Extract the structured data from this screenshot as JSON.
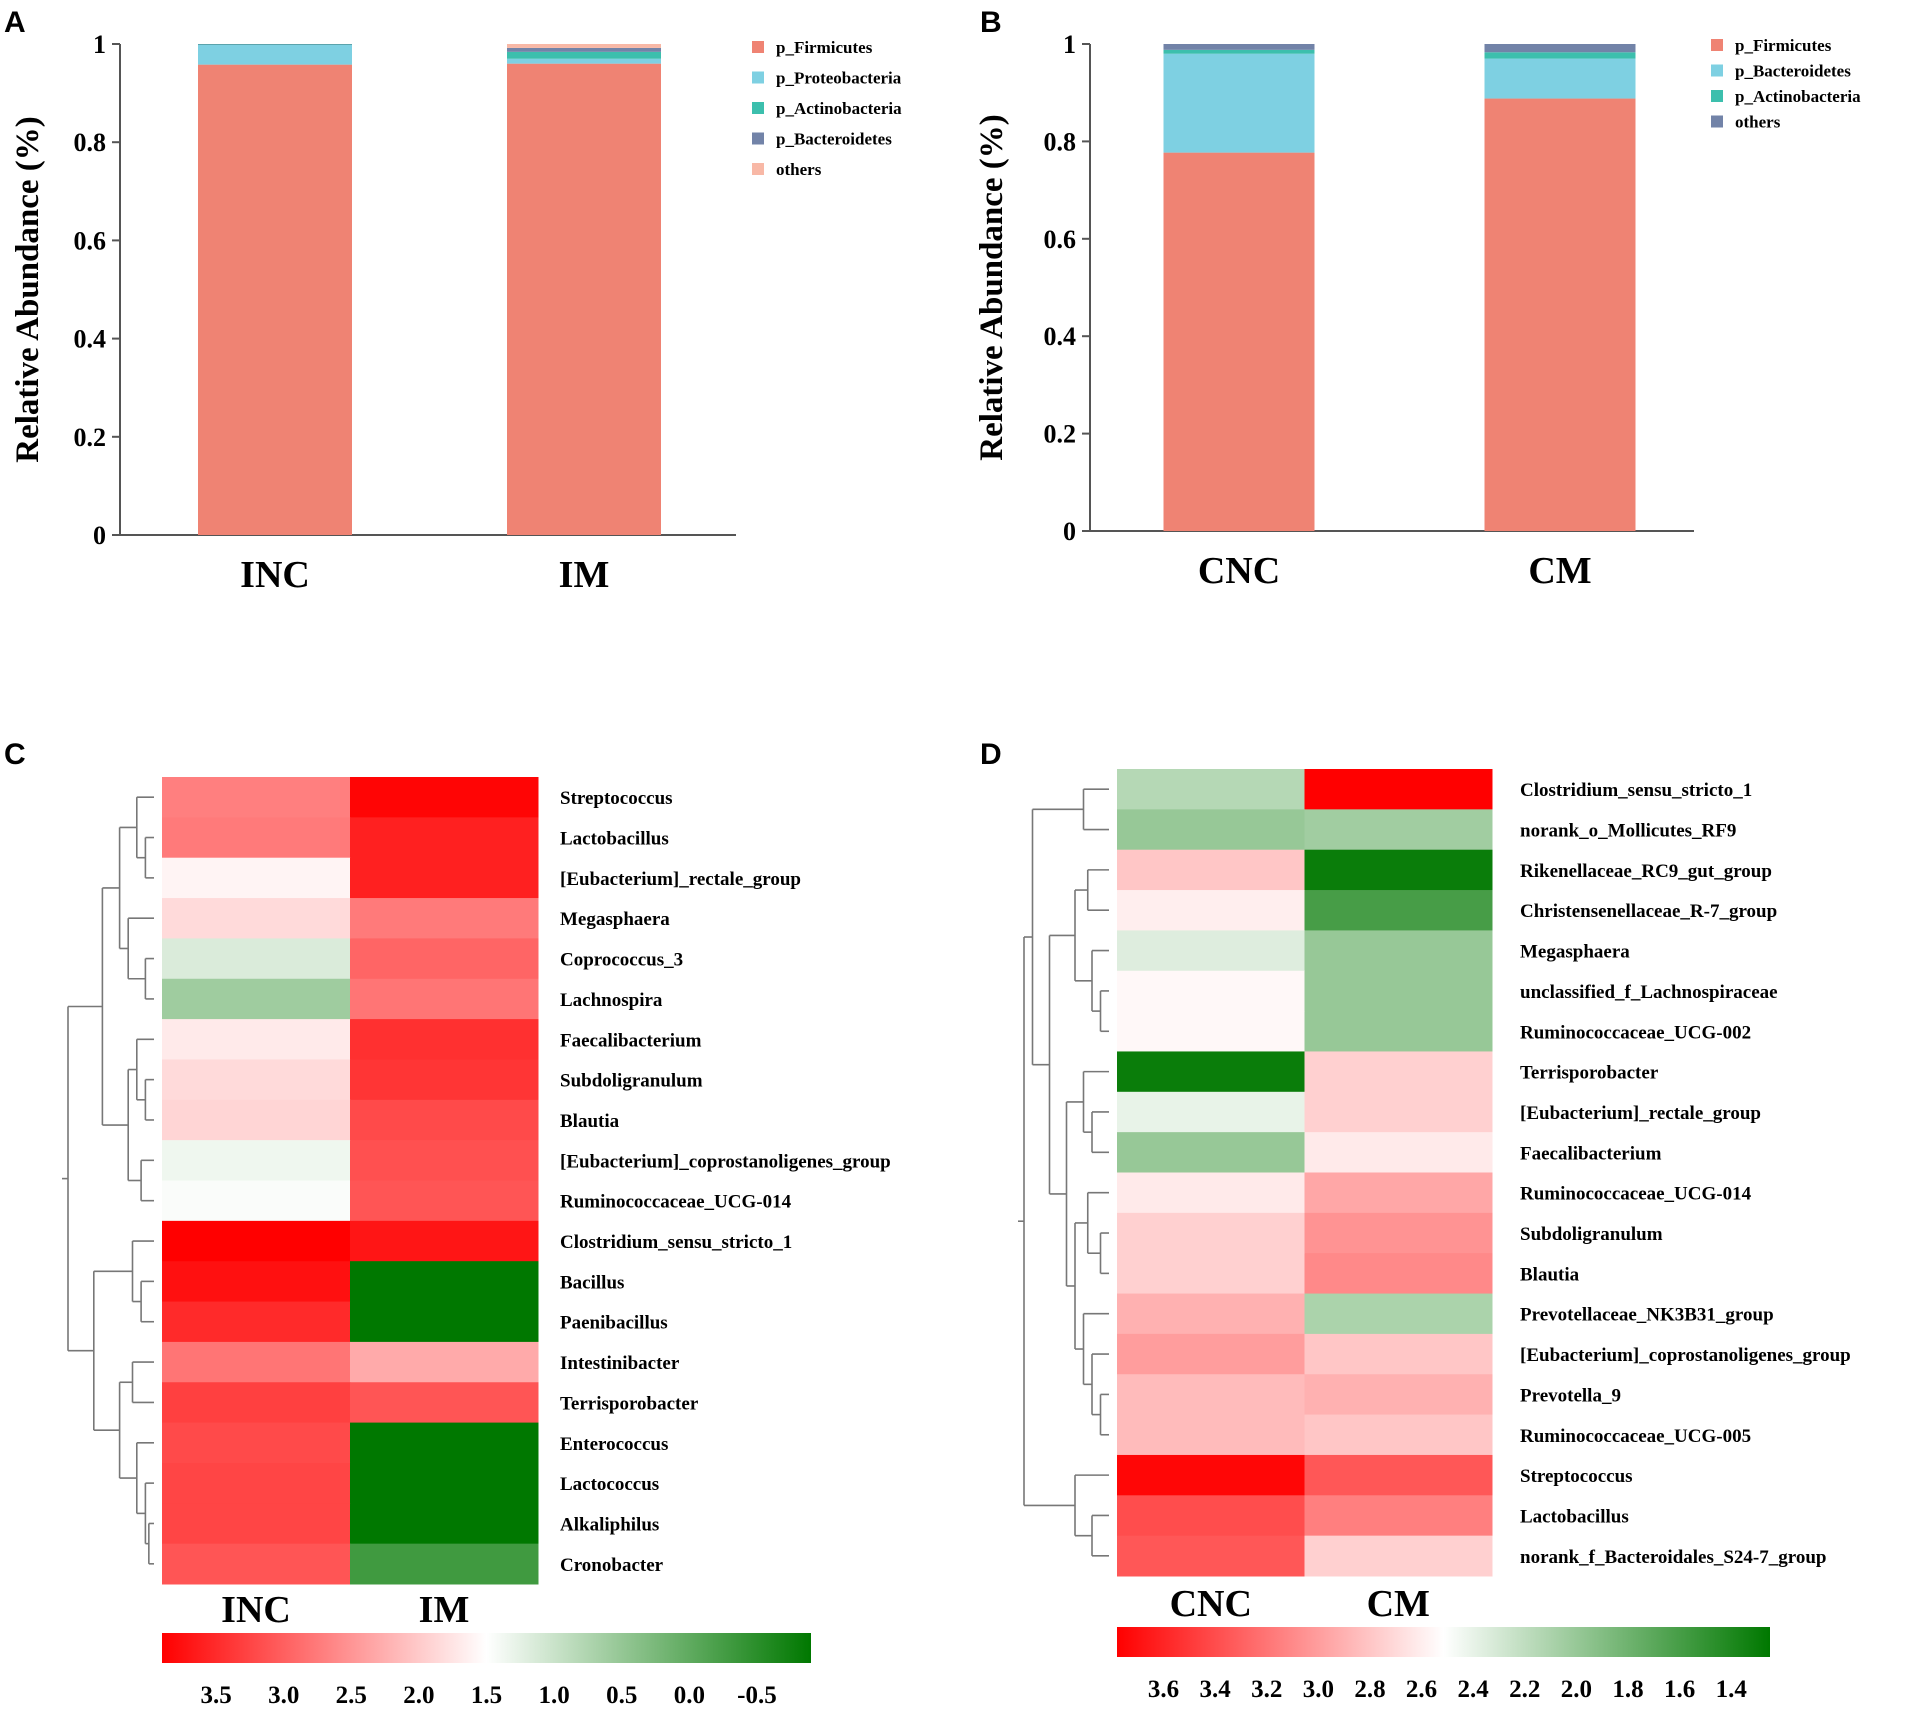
{
  "chart_data": [
    {
      "panel": "A",
      "type": "bar",
      "stacked": true,
      "ylabel": "Relative Abundance (%)",
      "ylim": [
        0,
        1
      ],
      "yticks": [
        "0",
        "0.2",
        "0.4",
        "0.6",
        "0.8",
        "1"
      ],
      "categories": [
        "INC",
        "IM"
      ],
      "series": [
        {
          "name": "p_Firmicutes",
          "color": "#ef8373",
          "values": [
            0.958,
            0.96
          ]
        },
        {
          "name": "p_Proteobacteria",
          "color": "#7ed0e2",
          "values": [
            0.04,
            0.01
          ]
        },
        {
          "name": "p_Actinobacteria",
          "color": "#3cbfad",
          "values": [
            0.001,
            0.014
          ]
        },
        {
          "name": "p_Bacteroidetes",
          "color": "#7283a8",
          "values": [
            0.001,
            0.008
          ]
        },
        {
          "name": "others",
          "color": "#f8b8a6",
          "values": [
            0.0,
            0.008
          ]
        }
      ]
    },
    {
      "panel": "B",
      "type": "bar",
      "stacked": true,
      "ylabel": "Relative Abundance (%)",
      "ylim": [
        0,
        1
      ],
      "yticks": [
        "0",
        "0.2",
        "0.4",
        "0.6",
        "0.8",
        "1"
      ],
      "categories": [
        "CNC",
        "CM"
      ],
      "series": [
        {
          "name": "p_Firmicutes",
          "color": "#ef8373",
          "values": [
            0.777,
            0.888
          ]
        },
        {
          "name": "p_Bacteroidetes",
          "color": "#7ed0e2",
          "values": [
            0.203,
            0.082
          ]
        },
        {
          "name": "p_Actinobacteria",
          "color": "#3cbfad",
          "values": [
            0.008,
            0.013
          ]
        },
        {
          "name": "others",
          "color": "#7283a8",
          "values": [
            0.012,
            0.017
          ]
        }
      ]
    },
    {
      "panel": "C",
      "type": "heatmap",
      "columns": [
        "INC",
        "IM"
      ],
      "rows": [
        "Streptococcus",
        "Lactobacillus",
        "[Eubacterium]_rectale_group",
        "Megasphaera",
        "Coprococcus_3",
        "Lachnospira",
        "Faecalibacterium",
        "Subdoligranulum",
        "Blautia",
        "[Eubacterium]_coprostanoligenes_group",
        "Ruminococcaceae_UCG-014",
        "Clostridium_sensu_stricto_1",
        "Bacillus",
        "Paenibacillus",
        "Intestinibacter",
        "Terrisporobacter",
        "Enterococcus",
        "Lactococcus",
        "Alkaliphilus",
        "Cronobacter"
      ],
      "values": [
        [
          2.7,
          3.85
        ],
        [
          2.75,
          3.6
        ],
        [
          1.6,
          3.6
        ],
        [
          1.85,
          2.75
        ],
        [
          1.15,
          2.95
        ],
        [
          0.6,
          2.8
        ],
        [
          1.7,
          3.45
        ],
        [
          1.85,
          3.4
        ],
        [
          1.9,
          3.2
        ],
        [
          1.35,
          3.15
        ],
        [
          1.45,
          3.1
        ],
        [
          3.9,
          3.7
        ],
        [
          3.75,
          -0.9
        ],
        [
          3.5,
          -0.9
        ],
        [
          2.8,
          2.3
        ],
        [
          3.3,
          3.1
        ],
        [
          3.2,
          -0.9
        ],
        [
          3.25,
          -0.9
        ],
        [
          3.25,
          -0.9
        ],
        [
          3.1,
          -0.3
        ]
      ],
      "colorbar": {
        "min": 3.9,
        "max": -0.9,
        "ticks": [
          "3.5",
          "3.0",
          "2.5",
          "2.0",
          "1.5",
          "1.0",
          "0.5",
          "0.0",
          "-0.5"
        ],
        "low_color": "#ff0000",
        "mid_color": "#ffffff",
        "high_color": "#007800"
      }
    },
    {
      "panel": "D",
      "type": "heatmap",
      "columns": [
        "CNC",
        "CM"
      ],
      "rows": [
        "Clostridium_sensu_stricto_1",
        "norank_o_Mollicutes_RF9",
        "Rikenellaceae_RC9_gut_group",
        "Christensenellaceae_R-7_group",
        "Megasphaera",
        "unclassified_f_Lachnospiraceae",
        "Ruminococcaceae_UCG-002",
        "Terrisporobacter",
        "[Eubacterium]_rectale_group",
        "Faecalibacterium",
        "Ruminococcaceae_UCG-014",
        "Subdoligranulum",
        "Blautia",
        "Prevotellaceae_NK3B31_group",
        "[Eubacterium]_coprostanoligenes_group",
        "Prevotella_9",
        "Ruminococcaceae_UCG-005",
        "Streptococcus",
        "Lactobacillus",
        "norank_f_Bacteroidales_S24-7_group"
      ],
      "values": [
        [
          2.15,
          3.78
        ],
        [
          2.0,
          2.05
        ],
        [
          2.8,
          1.3
        ],
        [
          2.6,
          1.6
        ],
        [
          2.35,
          2.0
        ],
        [
          2.55,
          2.0
        ],
        [
          2.55,
          2.0
        ],
        [
          1.3,
          2.75
        ],
        [
          2.4,
          2.75
        ],
        [
          2.0,
          2.62
        ],
        [
          2.62,
          2.95
        ],
        [
          2.75,
          3.05
        ],
        [
          2.75,
          3.1
        ],
        [
          2.9,
          2.1
        ],
        [
          3.0,
          2.8
        ],
        [
          2.85,
          2.9
        ],
        [
          2.85,
          2.8
        ],
        [
          3.75,
          3.35
        ],
        [
          3.4,
          3.15
        ],
        [
          3.35,
          2.75
        ]
      ],
      "colorbar": {
        "min": 3.78,
        "max": 1.25,
        "ticks": [
          "3.6",
          "3.4",
          "3.2",
          "3.0",
          "2.8",
          "2.6",
          "2.4",
          "2.2",
          "2.0",
          "1.8",
          "1.6",
          "1.4"
        ],
        "low_color": "#ff0000",
        "mid_color": "#ffffff",
        "high_color": "#007800"
      }
    }
  ],
  "panels": {
    "A": "A",
    "B": "B",
    "C": "C",
    "D": "D"
  }
}
